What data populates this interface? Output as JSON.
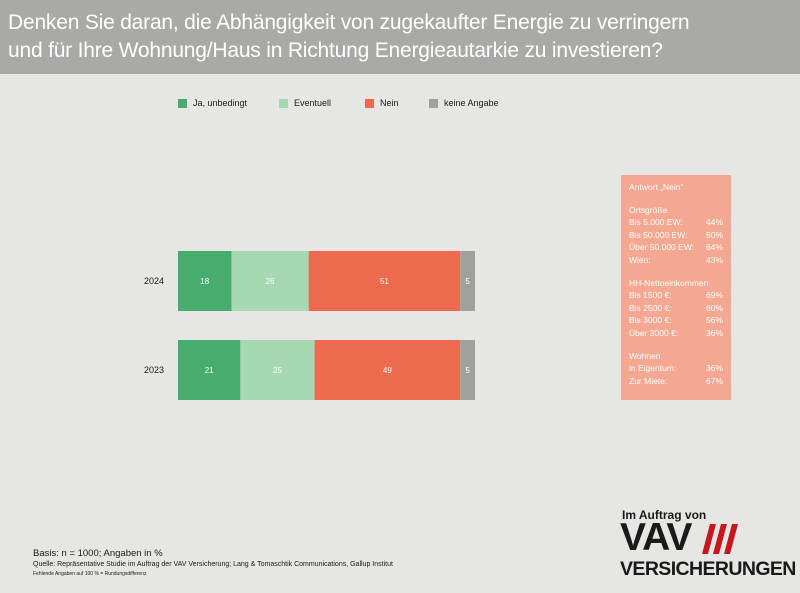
{
  "title": {
    "line1": "Denken Sie daran, die Abhängigkeit von zugekaufter Energie zu verringern",
    "line2": "und für Ihre Wohnung/Haus in Richtung Energieautarkie zu investieren?"
  },
  "colors": {
    "ja": "#47ad6e",
    "eventuell": "#a6d8b1",
    "nein": "#ee6a4f",
    "keine": "#a0a09e",
    "panel": "#f4a891"
  },
  "chart_data": {
    "type": "bar",
    "orientation": "horizontal",
    "stacked": true,
    "categories": [
      "2024",
      "2023"
    ],
    "series": [
      {
        "name": "Ja, unbedingt",
        "values": [
          18,
          21
        ],
        "color": "#47ad6e"
      },
      {
        "name": "Eventuell",
        "values": [
          26,
          25
        ],
        "color": "#a6d8b1"
      },
      {
        "name": "Nein",
        "values": [
          51,
          49
        ],
        "color": "#ee6a4f"
      },
      {
        "name": "keine Angabe",
        "values": [
          5,
          5
        ],
        "color": "#a0a09e"
      }
    ],
    "xlim": [
      0,
      100
    ],
    "grid": false,
    "legend": "top"
  },
  "side_panel": {
    "heading": "Antwort „Nein“",
    "groups": [
      {
        "title": "Ortsgröße",
        "rows": [
          {
            "label": "Bis 5.000 EW:",
            "value": "44%"
          },
          {
            "label": "Bis 50.000 EW:",
            "value": "50%"
          },
          {
            "label": "Über 50.000 EW:",
            "value": "64%"
          },
          {
            "label": "Wien:",
            "value": "43%"
          }
        ]
      },
      {
        "title": "HH-Nettoeinkommen",
        "rows": [
          {
            "label": "Bis 1500 €:",
            "value": "69%"
          },
          {
            "label": "Bis 2500 €:",
            "value": "60%"
          },
          {
            "label": "Bis 3000 €:",
            "value": "56%"
          },
          {
            "label": "Über 3000 €:",
            "value": "36%"
          }
        ]
      },
      {
        "title": "Wohnen",
        "rows": [
          {
            "label": "in Eigentum:",
            "value": "36%"
          },
          {
            "label": "Zur Miete:",
            "value": "67%"
          }
        ]
      }
    ]
  },
  "footer": {
    "basis": "Basis: n = 1000; Angaben in %",
    "source": "Quelle: Repräsentative Studie im Auftrag der VAV Versicherung; Lang & Tomaschtik Communications, Gallup Institut",
    "note": "Fehlende Angaben auf 100 % = Rundungsdifferenz"
  },
  "logo": {
    "top": "Im Auftrag von",
    "brand": "VAV",
    "bottom": "VERSICHERUNGEN"
  }
}
